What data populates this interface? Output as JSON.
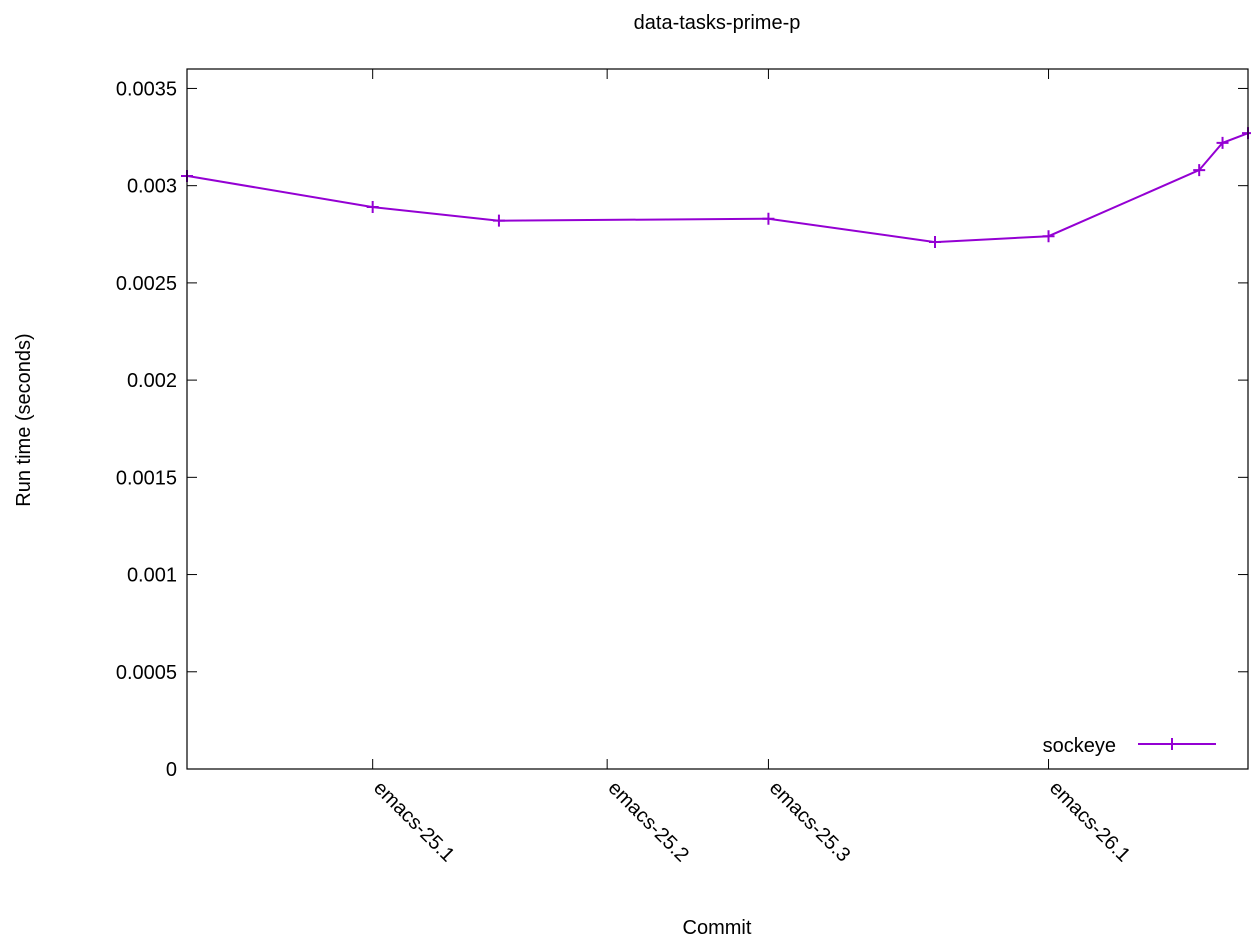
{
  "chart_data": {
    "type": "line",
    "title": "data-tasks-prime-p",
    "xlabel": "Commit",
    "ylabel": "Run time (seconds)",
    "ylim": [
      0,
      0.0036
    ],
    "yticks": [
      {
        "value": 0,
        "label": "0"
      },
      {
        "value": 0.0005,
        "label": "0.0005"
      },
      {
        "value": 0.001,
        "label": "0.001"
      },
      {
        "value": 0.0015,
        "label": "0.0015"
      },
      {
        "value": 0.002,
        "label": "0.002"
      },
      {
        "value": 0.0025,
        "label": "0.0025"
      },
      {
        "value": 0.003,
        "label": "0.003"
      },
      {
        "value": 0.0035,
        "label": "0.0035"
      }
    ],
    "xlim": [
      0,
      100
    ],
    "xticks": [
      {
        "x": 17.5,
        "label": "emacs-25.1"
      },
      {
        "x": 39.6,
        "label": "emacs-25.2"
      },
      {
        "x": 54.8,
        "label": "emacs-25.3"
      },
      {
        "x": 81.2,
        "label": "emacs-26.1"
      }
    ],
    "grid": false,
    "legend_position": "bottom-right",
    "series": [
      {
        "name": "sockeye",
        "color": "#9400d3",
        "x": [
          0,
          17.5,
          29.4,
          54.8,
          70.5,
          81.2,
          95.4,
          97.6,
          100
        ],
        "values": [
          0.00305,
          0.00289,
          0.00282,
          0.00283,
          0.00271,
          0.00274,
          0.00308,
          0.00322,
          0.00327
        ]
      }
    ]
  }
}
